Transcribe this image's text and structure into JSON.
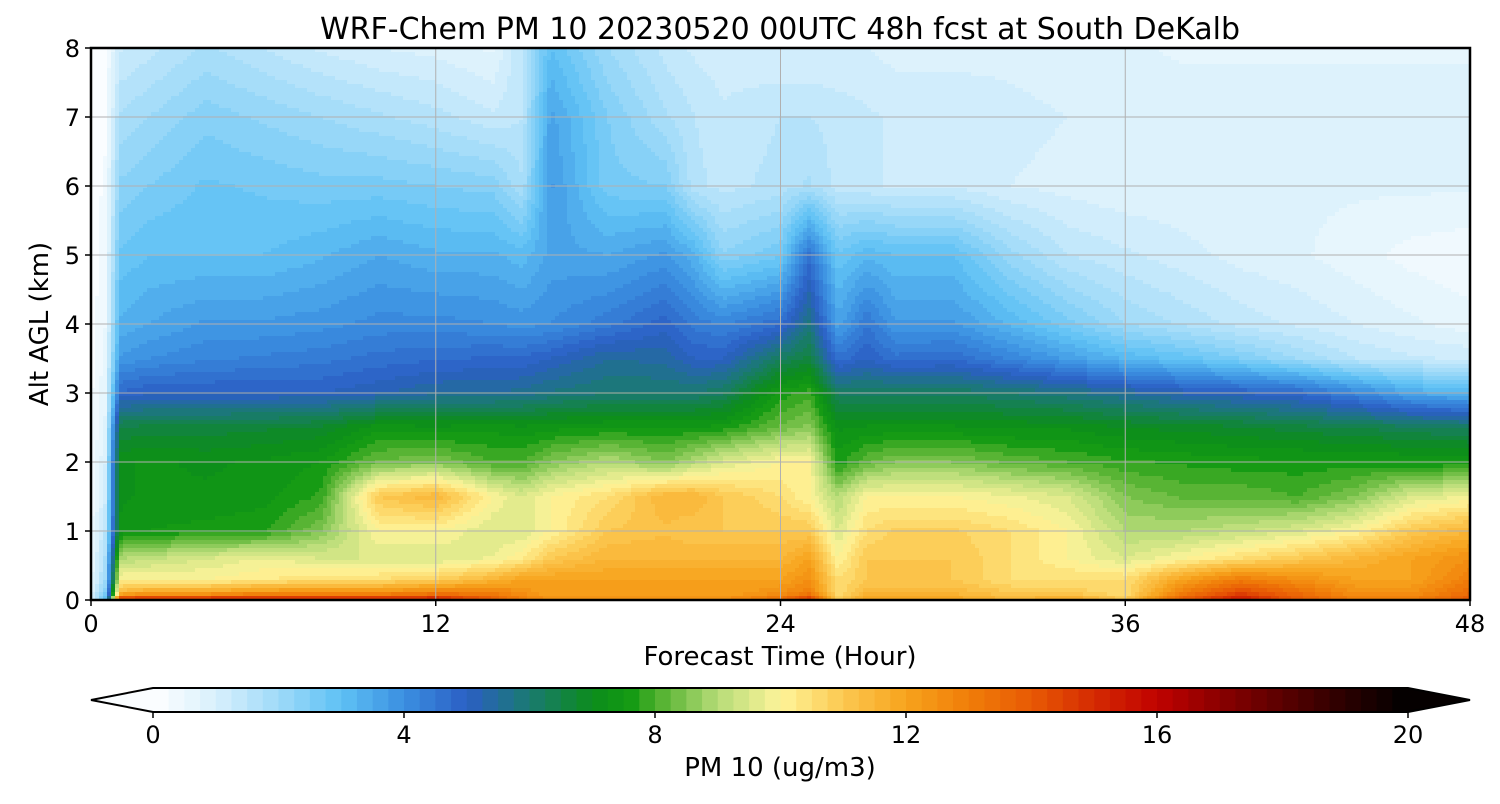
{
  "chart_data": {
    "type": "heatmap",
    "title": "WRF-Chem PM 10  20230520 00UTC 48h fcst at South DeKalb",
    "xlabel": "Forecast Time (Hour)",
    "ylabel": "Alt AGL (km)",
    "xlim": [
      0,
      48
    ],
    "ylim": [
      0,
      8
    ],
    "x_ticks": [
      0,
      12,
      24,
      36,
      48
    ],
    "y_ticks": [
      0,
      1,
      2,
      3,
      4,
      5,
      6,
      7,
      8
    ],
    "grid": true,
    "colorbar": {
      "label": "PM 10  (ug/m3)",
      "min": 0,
      "max": 20,
      "ticks": [
        0,
        4,
        8,
        12,
        16,
        20
      ],
      "extend": "both",
      "stops": [
        [
          0,
          "#ffffff"
        ],
        [
          1,
          "#d8f0fc"
        ],
        [
          2,
          "#9fdaf8"
        ],
        [
          3,
          "#5ec1f5"
        ],
        [
          4,
          "#3b8fe0"
        ],
        [
          5,
          "#2b5fc4"
        ],
        [
          6,
          "#1a7a70"
        ],
        [
          7,
          "#0c8c1c"
        ],
        [
          7.6,
          "#129a12"
        ],
        [
          8,
          "#4aae2a"
        ],
        [
          9,
          "#b6dc78"
        ],
        [
          10,
          "#fef49a"
        ],
        [
          11,
          "#fcc850"
        ],
        [
          12,
          "#f7a31c"
        ],
        [
          13,
          "#f07d08"
        ],
        [
          14,
          "#e85a04"
        ],
        [
          15,
          "#d52a02"
        ],
        [
          16,
          "#c00200"
        ],
        [
          17,
          "#8a0000"
        ],
        [
          18,
          "#5a0000"
        ],
        [
          19,
          "#2a0000"
        ],
        [
          20,
          "#000000"
        ]
      ]
    },
    "field": {
      "x": [
        0,
        0.5,
        1,
        2,
        4,
        6,
        8,
        10,
        12,
        14,
        15,
        16,
        18,
        20,
        21,
        22,
        24,
        25,
        26,
        27,
        28,
        30,
        32,
        34,
        36,
        38,
        40,
        42,
        44,
        46,
        48
      ],
      "y": [
        0,
        0.1,
        0.3,
        0.6,
        1.0,
        1.5,
        2.0,
        2.5,
        3.0,
        3.5,
        4.0,
        5.0,
        6.0,
        7.0,
        8.0
      ],
      "z": [
        [
          1,
          3,
          15,
          15.5,
          15.5,
          15.5,
          15.5,
          15.5,
          15.5,
          14,
          13,
          12.5,
          12.5,
          12.5,
          12.5,
          12.5,
          13.5,
          15,
          11,
          12,
          12,
          12,
          11.5,
          12,
          11,
          14,
          15.5,
          14,
          13,
          13,
          14
        ],
        [
          0.8,
          2.5,
          11.5,
          12,
          12,
          12.5,
          12.5,
          12.5,
          13,
          13,
          12.5,
          12,
          12,
          12,
          12,
          12,
          12.5,
          13,
          10.5,
          11.5,
          11.5,
          11.5,
          11,
          11,
          10.5,
          13,
          14.5,
          13.5,
          12.5,
          12.5,
          13.5
        ],
        [
          0.6,
          2,
          10,
          10,
          10,
          10.2,
          10.5,
          10.5,
          10.8,
          11.5,
          12,
          12,
          12,
          12,
          12,
          12,
          12,
          12.5,
          10.5,
          11,
          11,
          11,
          10.5,
          10.5,
          10.5,
          12,
          13,
          12.5,
          12,
          12,
          13
        ],
        [
          0.5,
          1.8,
          9,
          9.2,
          9.5,
          9.8,
          9.5,
          9.5,
          9.5,
          9.8,
          10.2,
          11,
          11.5,
          11.5,
          11.5,
          11.5,
          11.5,
          12,
          10,
          11,
          11,
          11,
          10.5,
          10,
          9.5,
          10,
          10.5,
          11,
          11.5,
          12,
          12.5
        ],
        [
          0.4,
          1.5,
          7.3,
          7.5,
          7.6,
          7.7,
          8.5,
          10,
          10,
          9.5,
          9.5,
          10,
          11,
          11.2,
          11,
          11,
          11,
          11,
          9.5,
          10.5,
          10.8,
          10.8,
          10.5,
          10,
          9,
          9,
          9.2,
          9.5,
          10,
          11,
          11.5
        ],
        [
          0.3,
          1.2,
          7.2,
          7.3,
          7.3,
          7.4,
          7.8,
          11,
          11.5,
          10,
          9.5,
          10,
          10.5,
          11.5,
          11.5,
          11,
          10.5,
          10,
          9,
          10,
          10,
          10,
          9.8,
          9.5,
          8.5,
          8.2,
          8.2,
          8,
          8.5,
          9.5,
          9.8
        ],
        [
          0.3,
          1,
          7.2,
          7.3,
          7.2,
          7.3,
          7.5,
          8.3,
          8.5,
          8,
          8,
          8.5,
          9,
          8.5,
          9,
          9.5,
          10,
          10,
          7.6,
          8.2,
          8.5,
          8.5,
          8.2,
          8,
          7.8,
          7.7,
          7.6,
          7.6,
          7.6,
          7.5,
          7.5
        ],
        [
          0.2,
          0.8,
          6.5,
          6.6,
          6.6,
          6.7,
          6.8,
          7.4,
          7.3,
          7.4,
          7.3,
          7.4,
          7.5,
          7.5,
          7.5,
          7.6,
          8.3,
          8.6,
          7.2,
          7.3,
          7.3,
          7.3,
          7.2,
          7.2,
          7,
          6.9,
          6.8,
          6.6,
          6.5,
          6.3,
          6.2
        ],
        [
          0.2,
          0.7,
          4.8,
          5,
          5,
          5,
          5,
          5.2,
          5.5,
          5.5,
          5.6,
          5.8,
          6,
          6,
          6,
          6.2,
          7.6,
          7.9,
          6.2,
          6.2,
          6.2,
          6.2,
          6,
          5.8,
          5.5,
          5.2,
          5,
          4.8,
          4.2,
          3.5,
          3.2
        ],
        [
          0.1,
          0.6,
          3.8,
          4,
          4.2,
          4.3,
          4.4,
          4.6,
          4.7,
          4.8,
          4.8,
          5,
          5.5,
          5.4,
          5,
          5,
          6.2,
          6.6,
          4.6,
          5,
          4.6,
          4.7,
          4.2,
          3.7,
          3.2,
          2.9,
          2.5,
          2,
          1.5,
          1.3,
          1.2
        ],
        [
          0.1,
          0.5,
          3.3,
          3.5,
          3.8,
          3.8,
          3.9,
          4.1,
          4.1,
          4,
          3.9,
          4,
          4.4,
          4.9,
          4.4,
          4.2,
          4.7,
          5.8,
          3.6,
          4.5,
          3.8,
          3.8,
          3.2,
          2.6,
          2,
          1.7,
          1.4,
          1.2,
          1,
          0.8,
          0.6
        ],
        [
          0.1,
          0.4,
          2.8,
          3,
          3,
          3,
          3.2,
          3.5,
          3.3,
          3.3,
          3.1,
          3.6,
          3.5,
          3.8,
          3.3,
          2.3,
          2.7,
          4.6,
          2.8,
          3.2,
          3,
          3,
          2.1,
          1.5,
          1.3,
          1.1,
          0.9,
          0.8,
          0.6,
          0.4,
          0.3
        ],
        [
          0.1,
          0.3,
          2.3,
          2.5,
          2.8,
          2.7,
          2.6,
          2.6,
          2.5,
          2.4,
          1.8,
          3.8,
          2.6,
          2.5,
          1.6,
          1.4,
          1.6,
          1.8,
          1.4,
          1.3,
          1.2,
          1.2,
          1,
          0.9,
          0.8,
          0.8,
          0.8,
          0.8,
          0.8,
          0.8,
          0.8
        ],
        [
          0.1,
          0.2,
          1.8,
          2,
          2.4,
          2.2,
          2,
          1.8,
          1.6,
          1.3,
          1.5,
          3.6,
          2.5,
          1.8,
          1.5,
          1.3,
          1.5,
          1.5,
          1.4,
          1.3,
          1.2,
          1.2,
          1.1,
          1,
          1,
          0.9,
          0.9,
          0.9,
          0.9,
          0.9,
          0.9
        ],
        [
          0.1,
          0.2,
          1.2,
          1.4,
          1.8,
          1.5,
          1.2,
          1,
          0.9,
          0.7,
          1.5,
          3,
          2,
          1.4,
          1.2,
          1.1,
          1,
          1,
          1,
          1,
          0.9,
          0.9,
          0.9,
          0.8,
          0.8,
          0.7,
          0.7,
          0.7,
          0.7,
          0.7,
          0.7
        ]
      ]
    }
  }
}
